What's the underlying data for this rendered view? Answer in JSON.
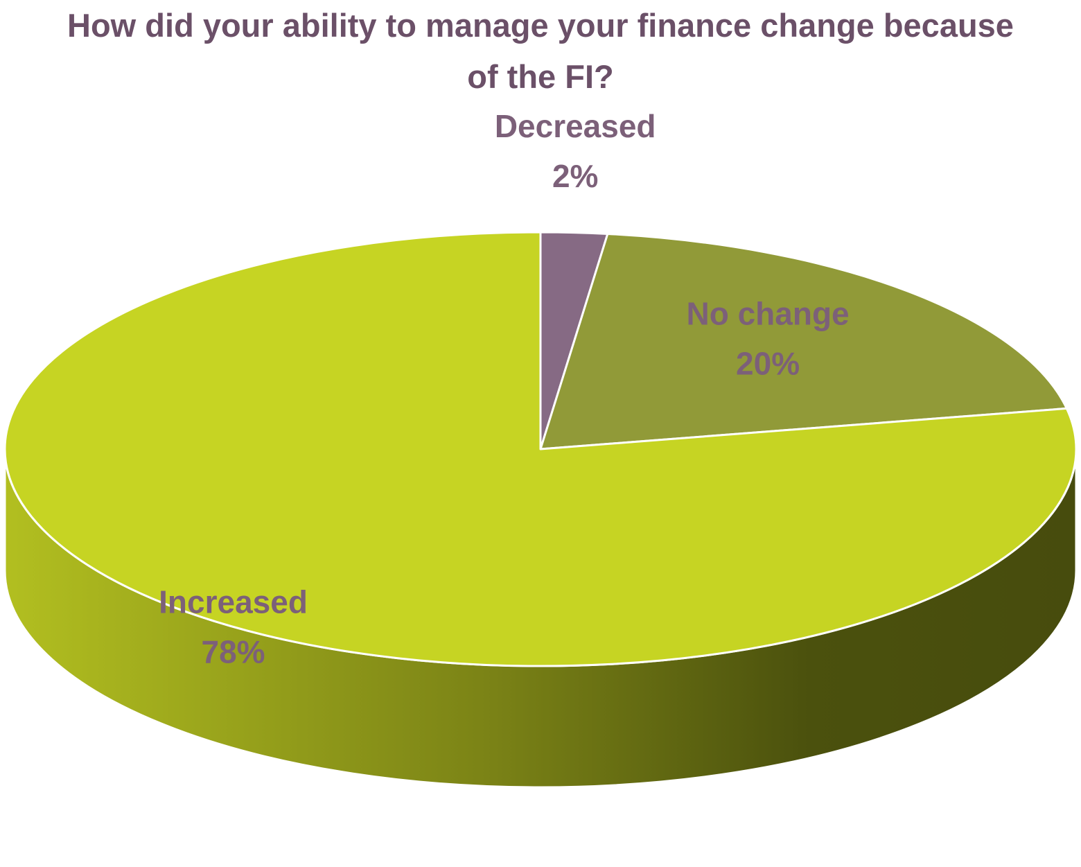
{
  "chart_data": {
    "type": "pie",
    "title": "How did your ability to manage your finance change because of the FI?",
    "categories": [
      "Decreased",
      "No change",
      "Increased"
    ],
    "values": [
      2,
      20,
      78
    ],
    "value_labels": [
      "2%",
      "20%",
      "78%"
    ],
    "colors": [
      "#866a84",
      "#919a38",
      "#c6d423"
    ]
  }
}
